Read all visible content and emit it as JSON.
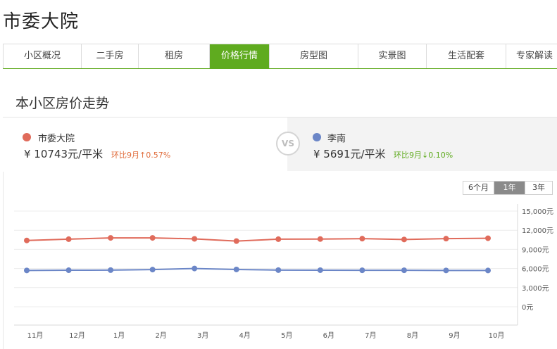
{
  "page": {
    "title": "市委大院"
  },
  "tabs": [
    {
      "label": "小区概况",
      "active": false
    },
    {
      "label": "二手房",
      "active": false
    },
    {
      "label": "租房",
      "active": false
    },
    {
      "label": "价格行情",
      "active": true
    },
    {
      "label": "房型图",
      "active": false
    },
    {
      "label": "实景图",
      "active": false
    },
    {
      "label": "生活配套",
      "active": false
    },
    {
      "label": "专家解读",
      "active": false
    }
  ],
  "section_title": "本小区房价走势",
  "compare": {
    "left": {
      "name": "市委大院",
      "price": "¥ 10743元/平米",
      "change": "环比9月↑0.57%",
      "color": "#e06b5b",
      "change_color": "#e06b3a"
    },
    "vs": "VS",
    "right": {
      "name": "李南",
      "price": "¥ 5691元/平米",
      "change": "环比9月↓0.10%",
      "color": "#6b86c7",
      "change_color": "#5fab1f"
    }
  },
  "range_buttons": [
    {
      "label": "6个月",
      "active": false
    },
    {
      "label": "1年",
      "active": true
    },
    {
      "label": "3年",
      "active": false
    }
  ],
  "chart_data": {
    "type": "line",
    "x": [
      "11月",
      "12月",
      "1月",
      "2月",
      "3月",
      "4月",
      "5月",
      "6月",
      "7月",
      "8月",
      "9月",
      "10月"
    ],
    "series": [
      {
        "name": "市委大院",
        "color": "#e06b5b",
        "values": [
          10400,
          10600,
          10800,
          10800,
          10650,
          10300,
          10600,
          10620,
          10680,
          10550,
          10680,
          10743
        ]
      },
      {
        "name": "李南",
        "color": "#6b86c7",
        "values": [
          5700,
          5730,
          5750,
          5830,
          6000,
          5850,
          5750,
          5740,
          5720,
          5720,
          5697,
          5691
        ]
      }
    ],
    "yticks": [
      "15,000元",
      "12,000元",
      "9,000元",
      "6,000元",
      "3,000元",
      "0元"
    ],
    "ylim": [
      0,
      15000
    ],
    "grid": true
  }
}
